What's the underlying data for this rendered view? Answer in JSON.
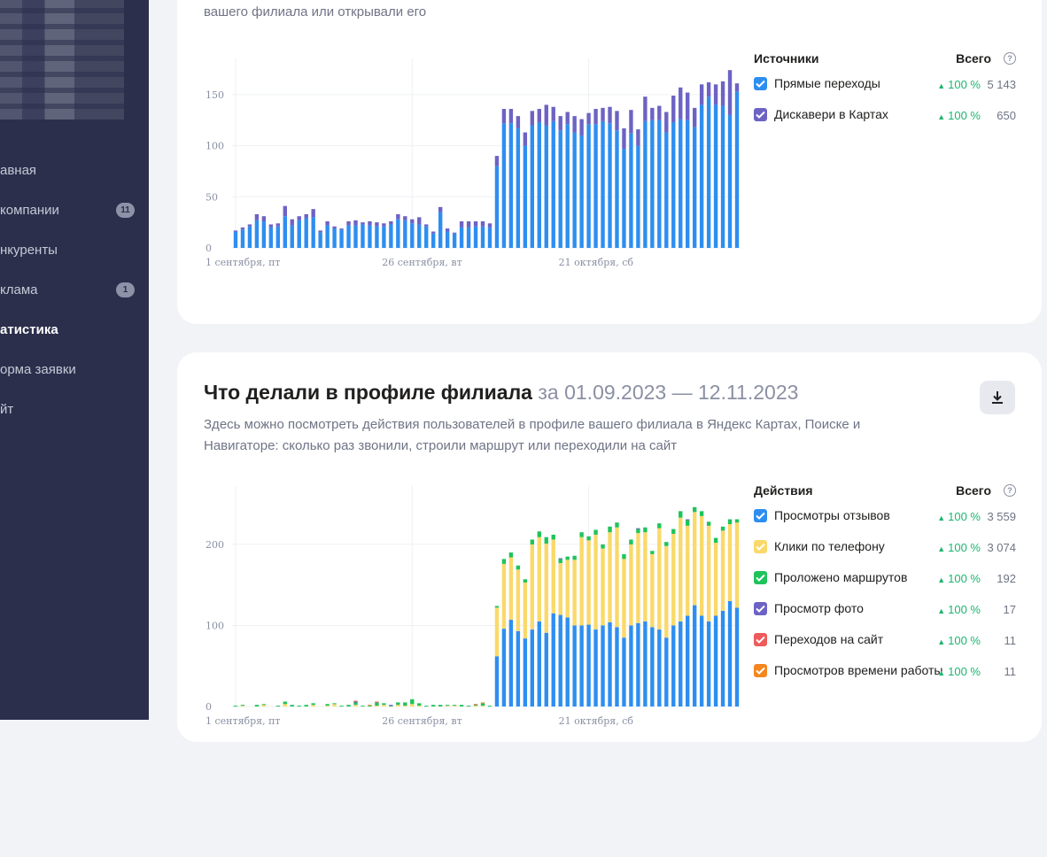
{
  "sidebar": {
    "items": [
      {
        "label": "авная",
        "badge": "",
        "active": false
      },
      {
        "label": "компании",
        "badge": "11",
        "active": false
      },
      {
        "label": "нкуренты",
        "badge": "",
        "active": false
      },
      {
        "label": "клама",
        "badge": "1",
        "active": false
      },
      {
        "label": "атистика",
        "badge": "",
        "active": true
      },
      {
        "label": "орма заявки",
        "badge": "",
        "active": false
      },
      {
        "label": "йт",
        "badge": "",
        "active": false
      }
    ]
  },
  "sources_card": {
    "description_tail": "вашего филиала или открывали его",
    "legend": {
      "heading": "Источники",
      "total_label": "Всего",
      "help": "?",
      "items": [
        {
          "label": "Прямые переходы",
          "pct": "100 %",
          "value": "5 143",
          "color": "#2e8ef0"
        },
        {
          "label": "Дискавери в Картах",
          "pct": "100 %",
          "value": "650",
          "color": "#6c63c4"
        }
      ]
    }
  },
  "actions_card": {
    "title": "Что делали в профиле филиала",
    "dates": "за 01.09.2023 — 12.11.2023",
    "description": "Здесь можно посмотреть действия пользователей в профиле вашего филиала в Яндекс Картах, Поиске и Навигаторе: сколько раз звонили, строили маршрут или переходили на сайт",
    "legend": {
      "heading": "Действия",
      "total_label": "Всего",
      "help": "?",
      "items": [
        {
          "label": "Просмотры отзывов",
          "pct": "100 %",
          "value": "3 559",
          "color": "#2e8ef0"
        },
        {
          "label": "Клики по телефону",
          "pct": "100 %",
          "value": "3 074",
          "color": "#fad96a"
        },
        {
          "label": "Проложено маршрутов",
          "pct": "100 %",
          "value": "192",
          "color": "#1fc35c"
        },
        {
          "label": "Просмотр фото",
          "pct": "100 %",
          "value": "17",
          "color": "#6c63c4"
        },
        {
          "label": "Переходов на сайт",
          "pct": "100 %",
          "value": "11",
          "color": "#ef5a5a"
        },
        {
          "label": "Просмотров времени работы",
          "pct": "100 %",
          "value": "11",
          "color": "#f5861f"
        }
      ]
    }
  },
  "chart_data": [
    {
      "type": "bar",
      "stacked": true,
      "x_tick_labels": [
        "1 сентября, пт",
        "26 сентября, вт",
        "21 октября, сб"
      ],
      "x_tick_index": [
        0,
        25,
        50
      ],
      "yticks": [
        0,
        50,
        100,
        150
      ],
      "ylim": [
        0,
        175
      ],
      "series": [
        {
          "name": "Прямые переходы",
          "color": "#2e8ef0",
          "values": [
            16,
            18,
            21,
            27,
            26,
            20,
            21,
            31,
            22,
            27,
            29,
            30,
            15,
            22,
            19,
            18,
            22,
            22,
            23,
            22,
            21,
            21,
            23,
            28,
            27,
            24,
            23,
            21,
            14,
            35,
            16,
            14,
            20,
            20,
            21,
            21,
            20,
            80,
            122,
            122,
            117,
            100,
            120,
            123,
            120,
            124,
            115,
            121,
            113,
            110,
            121,
            121,
            124,
            122,
            115,
            97,
            112,
            100,
            124,
            125,
            125,
            113,
            123,
            126,
            125,
            118,
            140,
            148,
            140,
            139,
            130,
            153
          ]
        },
        {
          "name": "Дискавери в Картах",
          "color": "#6c63c4",
          "values": [
            1,
            2,
            2,
            6,
            5,
            3,
            3,
            10,
            6,
            4,
            4,
            8,
            2,
            4,
            2,
            1,
            4,
            5,
            2,
            4,
            4,
            3,
            3,
            5,
            4,
            4,
            7,
            2,
            2,
            5,
            3,
            1,
            6,
            6,
            5,
            5,
            4,
            10,
            14,
            14,
            12,
            13,
            14,
            13,
            20,
            14,
            14,
            12,
            16,
            16,
            11,
            15,
            13,
            16,
            19,
            20,
            23,
            16,
            24,
            12,
            14,
            20,
            26,
            31,
            27,
            19,
            20,
            14,
            20,
            24,
            44,
            8
          ]
        }
      ]
    },
    {
      "type": "bar",
      "stacked": true,
      "x_tick_labels": [
        "1 сентября, пт",
        "26 сентября, вт",
        "21 октября, сб"
      ],
      "x_tick_index": [
        0,
        25,
        50
      ],
      "yticks": [
        0,
        100,
        200
      ],
      "ylim": [
        0,
        260
      ],
      "series": [
        {
          "name": "Просмотры отзывов",
          "color": "#2e8ef0",
          "values": [
            0,
            0,
            0,
            0,
            0,
            0,
            0,
            0,
            0,
            0,
            0,
            0,
            0,
            0,
            0,
            0,
            0,
            0,
            0,
            0,
            0,
            0,
            0,
            0,
            0,
            0,
            0,
            0,
            0,
            0,
            0,
            0,
            0,
            0,
            0,
            0,
            0,
            62,
            96,
            107,
            93,
            84,
            95,
            105,
            91,
            115,
            113,
            110,
            100,
            100,
            101,
            95,
            100,
            104,
            98,
            85,
            100,
            103,
            105,
            98,
            95,
            85,
            100,
            105,
            112,
            125,
            112,
            105,
            112,
            118,
            130,
            122
          ]
        },
        {
          "name": "Клики по телефону",
          "color": "#fad96a",
          "values": [
            0,
            1,
            0,
            0,
            2,
            0,
            0,
            3,
            0,
            0,
            0,
            2,
            0,
            1,
            3,
            0,
            0,
            2,
            0,
            0,
            1,
            2,
            0,
            2,
            1,
            3,
            1,
            0,
            0,
            0,
            1,
            1,
            0,
            0,
            1,
            1,
            0,
            60,
            80,
            77,
            76,
            69,
            105,
            104,
            110,
            91,
            64,
            71,
            81,
            109,
            104,
            117,
            95,
            111,
            123,
            97,
            100,
            111,
            110,
            90,
            125,
            113,
            113,
            128,
            111,
            115,
            123,
            118,
            90,
            99,
            95,
            105
          ]
        },
        {
          "name": "Проложено маршрутов",
          "color": "#1fc35c",
          "values": [
            1,
            1,
            0,
            2,
            1,
            0,
            1,
            3,
            2,
            1,
            2,
            2,
            0,
            2,
            1,
            1,
            2,
            3,
            1,
            1,
            4,
            2,
            1,
            3,
            4,
            6,
            3,
            1,
            2,
            2,
            1,
            1,
            2,
            1,
            1,
            3,
            1,
            2,
            6,
            6,
            5,
            4,
            6,
            7,
            8,
            6,
            5,
            4,
            5,
            6,
            5,
            6,
            5,
            7,
            6,
            6,
            6,
            5,
            6,
            4,
            6,
            5,
            6,
            8,
            7,
            6,
            6,
            5,
            6,
            5,
            6,
            4
          ]
        },
        {
          "name": "Просмотр фото",
          "color": "#6c63c4",
          "values": [
            0,
            0,
            0,
            0,
            0,
            0,
            0,
            0,
            0,
            0,
            0,
            0,
            0,
            0,
            0,
            0,
            0,
            1,
            0,
            0,
            0,
            0,
            1,
            0,
            0,
            0,
            0,
            0,
            0,
            0,
            0,
            0,
            0,
            0,
            0,
            0,
            0,
            0,
            0,
            0,
            0,
            0,
            0,
            0,
            0,
            0,
            1,
            0,
            0,
            0,
            0,
            0,
            0,
            0,
            0,
            0,
            0,
            1,
            0,
            0,
            0,
            0,
            0,
            0,
            1,
            0,
            0,
            0,
            0,
            0,
            0,
            0
          ]
        },
        {
          "name": "Переходов на сайт",
          "color": "#ef5a5a",
          "values": [
            0,
            0,
            0,
            0,
            0,
            0,
            0,
            0,
            0,
            0,
            0,
            0,
            0,
            0,
            0,
            0,
            0,
            1,
            0,
            0,
            1,
            0,
            0,
            0,
            0,
            0,
            0,
            0,
            0,
            0,
            0,
            0,
            0,
            0,
            1,
            0,
            0,
            0,
            0,
            0,
            0,
            0,
            0,
            0,
            0,
            0,
            0,
            0,
            0,
            0,
            0,
            0,
            0,
            0,
            0,
            0,
            0,
            0,
            0,
            0,
            0,
            0,
            0,
            0,
            0,
            0,
            0,
            0,
            0,
            0,
            0,
            0
          ]
        },
        {
          "name": "Просмотров времени работы",
          "color": "#f5861f",
          "values": [
            0,
            0,
            0,
            0,
            0,
            0,
            0,
            0,
            0,
            0,
            0,
            0,
            0,
            0,
            0,
            0,
            0,
            0,
            0,
            1,
            0,
            0,
            0,
            0,
            0,
            0,
            0,
            0,
            0,
            0,
            0,
            0,
            0,
            0,
            0,
            1,
            0,
            0,
            0,
            0,
            0,
            0,
            0,
            0,
            0,
            0,
            0,
            0,
            0,
            0,
            0,
            0,
            0,
            0,
            0,
            0,
            0,
            0,
            0,
            0,
            0,
            0,
            0,
            0,
            0,
            0,
            0,
            0,
            0,
            0,
            0,
            0
          ]
        }
      ]
    }
  ]
}
